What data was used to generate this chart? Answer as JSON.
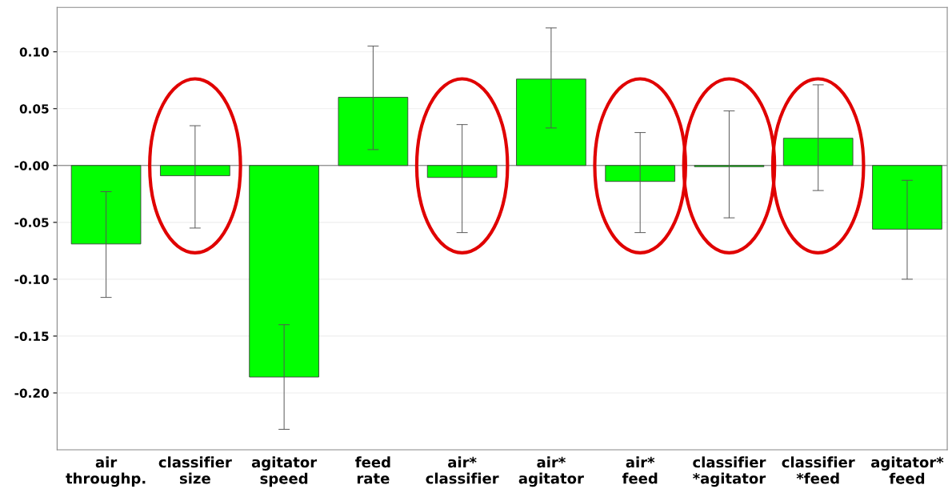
{
  "chart_data": {
    "type": "bar",
    "categories": [
      "air\nthroughp.",
      "classifier\nsize",
      "agitator\nspeed",
      "feed\nrate",
      "air*\nclassifier",
      "air*\nagitator",
      "air*\nfeed",
      "classifier\n*agitator",
      "classifier\n*feed",
      "agitator*\nfeed"
    ],
    "values": [
      -0.069,
      -0.009,
      -0.186,
      0.06,
      -0.0105,
      0.076,
      -0.014,
      -0.001,
      0.024,
      -0.056
    ],
    "errors": [
      [
        -0.116,
        -0.023
      ],
      [
        -0.055,
        0.035
      ],
      [
        -0.232,
        -0.14
      ],
      [
        0.014,
        0.105
      ],
      [
        -0.059,
        0.036
      ],
      [
        0.033,
        0.121
      ],
      [
        -0.059,
        0.029
      ],
      [
        -0.046,
        0.048
      ],
      [
        -0.022,
        0.071
      ],
      [
        -0.1,
        -0.013
      ]
    ],
    "color": "#00ff00",
    "ylim": [
      -0.25,
      0.139
    ],
    "yticks": [
      {
        "value": 0.1,
        "label": "0.10"
      },
      {
        "value": 0.05,
        "label": "0.05"
      },
      {
        "value": 0,
        "label": "-0.00"
      },
      {
        "value": -0.05,
        "label": "-0.05"
      },
      {
        "value": -0.1,
        "label": "-0.10"
      },
      {
        "value": -0.15,
        "label": "-0.15"
      },
      {
        "value": -0.2,
        "label": "-0.20"
      }
    ],
    "grid": "y"
  }
}
